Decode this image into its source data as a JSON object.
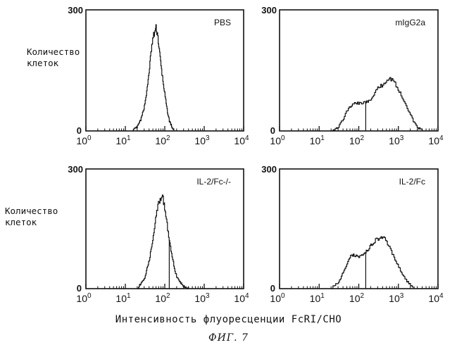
{
  "y_axis_label_line1": "Количество",
  "y_axis_label_line2": "клеток",
  "x_axis_title": "Интенсивность флуоресценции FcRI/CHO",
  "figure_caption": "ФИГ. 7",
  "chart_data": [
    {
      "type": "line",
      "title": "PBS",
      "xscale": "log",
      "xlim": [
        1,
        10000
      ],
      "ylim": [
        0,
        300
      ],
      "y_ticks": [
        "0",
        "300"
      ],
      "x_ticks": [
        {
          "base": "10",
          "exp": "0"
        },
        {
          "base": "10",
          "exp": "1"
        },
        {
          "base": "10",
          "exp": "2"
        },
        {
          "base": "10",
          "exp": "3"
        },
        {
          "base": "10",
          "exp": "4"
        }
      ],
      "marker_x": null,
      "series": [
        {
          "x": [
            15,
            20,
            25,
            30,
            35,
            40,
            45,
            50,
            55,
            60,
            65,
            70,
            80,
            90,
            100,
            110,
            120,
            130,
            150,
            170
          ],
          "y": [
            0,
            10,
            30,
            60,
            100,
            150,
            200,
            230,
            245,
            255,
            240,
            210,
            160,
            120,
            90,
            60,
            40,
            25,
            10,
            0
          ]
        }
      ]
    },
    {
      "type": "line",
      "title": "mIgG2a",
      "xscale": "log",
      "xlim": [
        1,
        10000
      ],
      "ylim": [
        0,
        300
      ],
      "y_ticks": [
        "0",
        "300"
      ],
      "x_ticks": [
        {
          "base": "10",
          "exp": "0"
        },
        {
          "base": "10",
          "exp": "1"
        },
        {
          "base": "10",
          "exp": "2"
        },
        {
          "base": "10",
          "exp": "3"
        },
        {
          "base": "10",
          "exp": "4"
        }
      ],
      "marker_x": 150,
      "series": [
        {
          "x": [
            20,
            30,
            40,
            50,
            60,
            70,
            80,
            100,
            130,
            160,
            200,
            250,
            300,
            400,
            500,
            600,
            700,
            800,
            1000,
            1300,
            1600,
            2000,
            2500,
            3000,
            4000
          ],
          "y": [
            0,
            10,
            30,
            50,
            60,
            65,
            70,
            68,
            70,
            72,
            80,
            95,
            105,
            115,
            125,
            130,
            128,
            120,
            100,
            80,
            60,
            40,
            20,
            8,
            0
          ]
        }
      ]
    },
    {
      "type": "line",
      "title": "IL-2/Fc-/-",
      "xscale": "log",
      "xlim": [
        1,
        10000
      ],
      "ylim": [
        0,
        300
      ],
      "y_ticks": [
        "0",
        "300"
      ],
      "x_ticks": [
        {
          "base": "10",
          "exp": "0"
        },
        {
          "base": "10",
          "exp": "1"
        },
        {
          "base": "10",
          "exp": "2"
        },
        {
          "base": "10",
          "exp": "3"
        },
        {
          "base": "10",
          "exp": "4"
        }
      ],
      "marker_x": 130,
      "series": [
        {
          "x": [
            20,
            30,
            40,
            50,
            60,
            70,
            80,
            90,
            100,
            110,
            120,
            140,
            160,
            180,
            200,
            250,
            300,
            400
          ],
          "y": [
            0,
            25,
            70,
            130,
            185,
            215,
            230,
            225,
            200,
            170,
            140,
            100,
            70,
            45,
            30,
            15,
            5,
            0
          ]
        }
      ]
    },
    {
      "type": "line",
      "title": "IL-2/Fc",
      "xscale": "log",
      "xlim": [
        1,
        10000
      ],
      "ylim": [
        0,
        300
      ],
      "y_ticks": [
        "0",
        "300"
      ],
      "x_ticks": [
        {
          "base": "10",
          "exp": "0"
        },
        {
          "base": "10",
          "exp": "1"
        },
        {
          "base": "10",
          "exp": "2"
        },
        {
          "base": "10",
          "exp": "3"
        },
        {
          "base": "10",
          "exp": "4"
        }
      ],
      "marker_x": 150,
      "series": [
        {
          "x": [
            20,
            30,
            40,
            50,
            60,
            70,
            80,
            100,
            130,
            160,
            200,
            250,
            300,
            350,
            400,
            500,
            600,
            800,
            1000,
            1300,
            1600,
            2000,
            2500
          ],
          "y": [
            0,
            15,
            40,
            65,
            80,
            85,
            82,
            80,
            85,
            95,
            110,
            120,
            125,
            130,
            128,
            120,
            100,
            75,
            55,
            35,
            20,
            8,
            0
          ]
        }
      ]
    }
  ]
}
